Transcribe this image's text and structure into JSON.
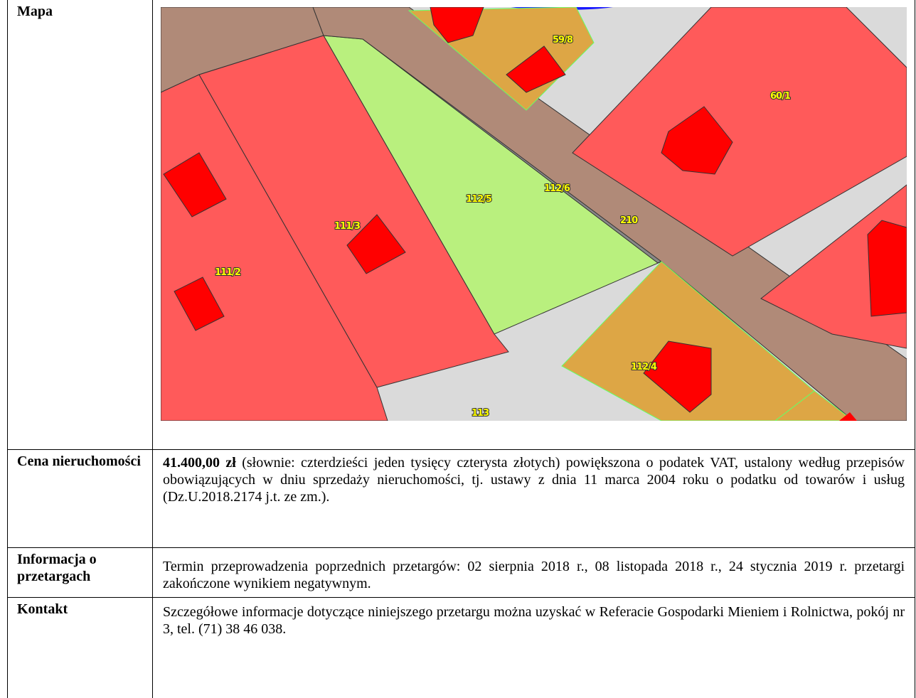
{
  "rows": [
    {
      "label": "Mapa"
    },
    {
      "label": "Cena nieruchomości",
      "bold": "41.400,00 zł",
      "text": "(słownie: czterdzieści jeden tysięcy czterysta złotych) powiększona o podatek VAT, ustalony według przepisów obowiązujących w dniu sprzedaży nieruchomości, tj. ustawy z dnia 11 marca 2004 roku o podatku od towarów i usług (Dz.U.2018.2174 j.t.  ze zm.)."
    },
    {
      "label": "Informacja o przetargach",
      "text": "Termin przeprowadzenia poprzednich przetargów: 02 sierpnia 2018 r., 08 listopada 2018 r., 24 stycznia 2019 r. przetargi zakończone wynikiem negatywnym."
    },
    {
      "label": "Kontakt",
      "text": "Szczegółowe informacje dotyczące niniejszego przetargu można uzyskać w Referacie Gospodarki Mieniem i Rolnictwa, pokój nr 3, tel. (71) 38 46 038."
    }
  ],
  "map": {
    "labels": [
      "59/8",
      "60/1",
      "112/6",
      "112/5",
      "210",
      "111/3",
      "111/2",
      "112/4",
      "113"
    ]
  }
}
